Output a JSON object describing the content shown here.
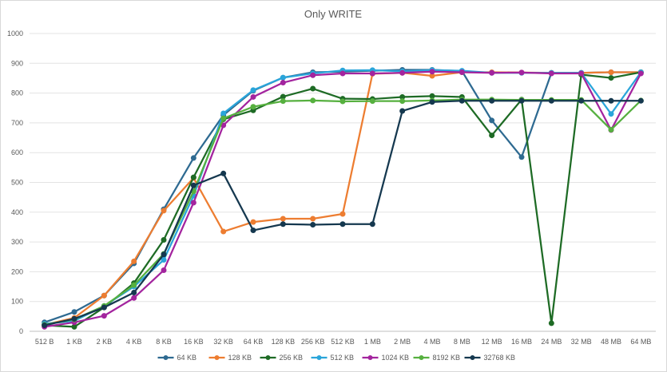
{
  "chart_data": {
    "type": "line",
    "title": "Only WRITE",
    "xlabel": "",
    "ylabel": "",
    "ylim": [
      0,
      1000
    ],
    "yticks": [
      0,
      100,
      200,
      300,
      400,
      500,
      600,
      700,
      800,
      900,
      1000
    ],
    "grid": true,
    "legend_position": "bottom",
    "categories": [
      "512 B",
      "1 KB",
      "2 KB",
      "4 KB",
      "8 KB",
      "16 KB",
      "32 KB",
      "64 KB",
      "128 KB",
      "256 KB",
      "512 KB",
      "1 MB",
      "2 MB",
      "4 MB",
      "8 MB",
      "12 MB",
      "16 MB",
      "24 MB",
      "32 MB",
      "48 MB",
      "64 MB"
    ],
    "series": [
      {
        "name": "64 KB",
        "color": "#2e6a91",
        "values": [
          30,
          65,
          120,
          228,
          410,
          582,
          726,
          808,
          852,
          870,
          872,
          875,
          878,
          878,
          874,
          708,
          585,
          868,
          868,
          870,
          870
        ]
      },
      {
        "name": "128 KB",
        "color": "#ed7d31",
        "values": [
          22,
          45,
          120,
          235,
          405,
          515,
          335,
          367,
          378,
          378,
          394,
          865,
          868,
          858,
          870,
          870,
          869,
          868,
          868,
          870,
          870
        ]
      },
      {
        "name": "256 KB",
        "color": "#1e6b25",
        "values": [
          20,
          15,
          80,
          162,
          307,
          517,
          712,
          742,
          788,
          815,
          781,
          780,
          787,
          790,
          787,
          658,
          778,
          27,
          862,
          851,
          870
        ]
      },
      {
        "name": "512 KB",
        "color": "#2aa5da",
        "values": [
          25,
          35,
          85,
          150,
          240,
          455,
          732,
          810,
          852,
          866,
          876,
          877,
          873,
          877,
          875,
          868,
          868,
          868,
          868,
          730,
          870
        ]
      },
      {
        "name": "1024 KB",
        "color": "#a3249e",
        "values": [
          15,
          30,
          52,
          112,
          205,
          432,
          692,
          787,
          835,
          860,
          866,
          866,
          868,
          872,
          870,
          868,
          869,
          866,
          866,
          676,
          866
        ]
      },
      {
        "name": "8192 KB",
        "color": "#56b03f",
        "values": [
          22,
          40,
          85,
          155,
          260,
          470,
          715,
          754,
          773,
          775,
          772,
          773,
          773,
          775,
          778,
          778,
          777,
          777,
          777,
          677,
          775
        ]
      },
      {
        "name": "32768 KB",
        "color": "#15384f",
        "values": [
          20,
          42,
          80,
          130,
          258,
          490,
          530,
          339,
          360,
          358,
          360,
          360,
          740,
          770,
          774,
          774,
          774,
          774,
          774,
          774,
          774
        ]
      }
    ]
  }
}
